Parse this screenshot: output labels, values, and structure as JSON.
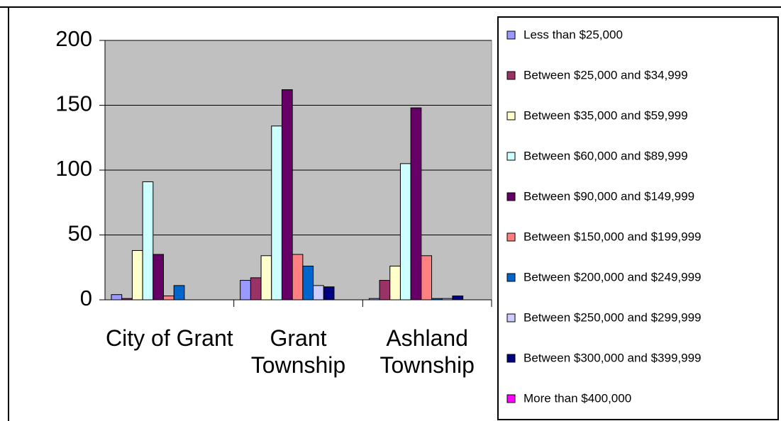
{
  "chart_data": {
    "type": "bar",
    "categories": [
      "City of Grant",
      "Grant Township",
      "Ashland Township"
    ],
    "series": [
      {
        "name": "Less than $25,000",
        "color": "#9999ff",
        "values": [
          4,
          15,
          1
        ]
      },
      {
        "name": "Between $25,000 and $34,999",
        "color": "#993366",
        "values": [
          1,
          17,
          15
        ]
      },
      {
        "name": "Between $35,000 and $59,999",
        "color": "#ffffcc",
        "values": [
          38,
          34,
          26
        ]
      },
      {
        "name": "Between $60,000 and $89,999",
        "color": "#ccffff",
        "values": [
          91,
          134,
          105
        ]
      },
      {
        "name": "Between $90,000 and $149,999",
        "color": "#660066",
        "values": [
          35,
          162,
          148
        ]
      },
      {
        "name": "Between $150,000 and $199,999",
        "color": "#ff8080",
        "values": [
          3,
          35,
          34
        ]
      },
      {
        "name": "Between $200,000 and $249,999",
        "color": "#0066cc",
        "values": [
          11,
          26,
          1
        ]
      },
      {
        "name": "Between $250,000 and $299,999",
        "color": "#ccccff",
        "values": [
          0,
          11,
          1
        ]
      },
      {
        "name": "Between $300,000 and $399,999",
        "color": "#000080",
        "values": [
          0,
          10,
          3
        ]
      },
      {
        "name": "More than $400,000",
        "color": "#ff00ff",
        "values": [
          0,
          0,
          0
        ]
      }
    ],
    "ylim": [
      0,
      200
    ],
    "yticks": [
      0,
      50,
      100,
      150,
      200
    ],
    "grid": true,
    "plot_background": "#c0c0c0",
    "legend": "right"
  }
}
